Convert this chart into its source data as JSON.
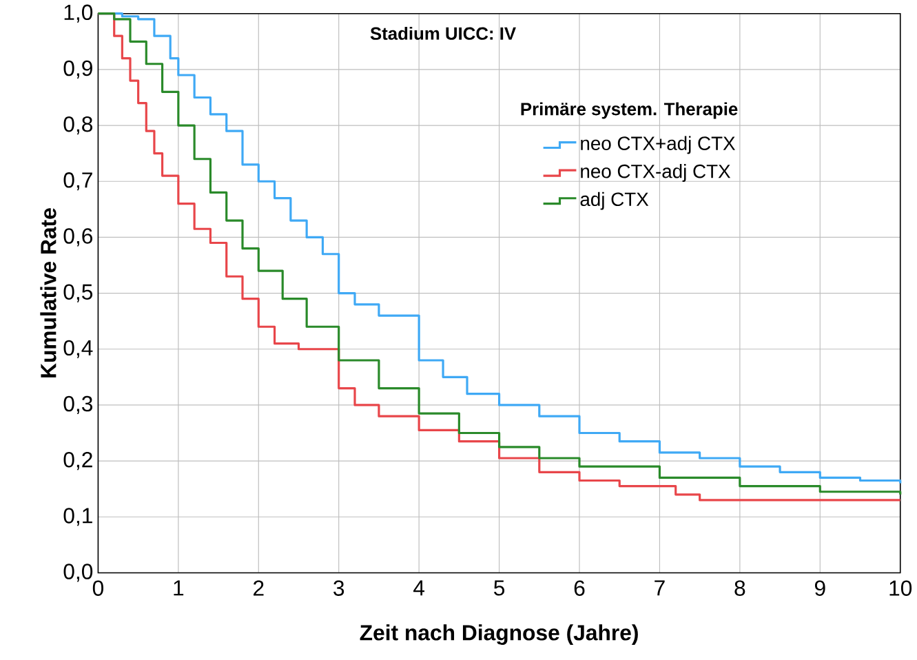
{
  "chart_data": {
    "type": "step",
    "title": "Stadium UICC: IV",
    "xlabel": "Zeit nach Diagnose (Jahre)",
    "ylabel": "Kumulative Rate",
    "legend_title": "Primäre system. Therapie",
    "xlim": [
      0,
      10
    ],
    "ylim": [
      0,
      1
    ],
    "xticks": [
      0,
      1,
      2,
      3,
      4,
      5,
      6,
      7,
      8,
      9,
      10
    ],
    "yticks": [
      {
        "value": 0,
        "label": "0,0"
      },
      {
        "value": 0.1,
        "label": "0,1"
      },
      {
        "value": 0.2,
        "label": "0,2"
      },
      {
        "value": 0.3,
        "label": "0,3"
      },
      {
        "value": 0.4,
        "label": "0,4"
      },
      {
        "value": 0.5,
        "label": "0,5"
      },
      {
        "value": 0.6,
        "label": "0,6"
      },
      {
        "value": 0.7,
        "label": "0,7"
      },
      {
        "value": 0.8,
        "label": "0,8"
      },
      {
        "value": 0.9,
        "label": "0,9"
      },
      {
        "value": 1,
        "label": "1,0"
      }
    ],
    "grid": true,
    "legend": "top right",
    "line_style": "solid",
    "series": [
      {
        "name": "neo CTX+adj CTX",
        "color": "#3fa9f5",
        "x": [
          0,
          0.3,
          0.5,
          0.7,
          0.9,
          1.0,
          1.2,
          1.4,
          1.6,
          1.8,
          2.0,
          2.2,
          2.4,
          2.6,
          2.8,
          3.0,
          3.2,
          3.5,
          4.0,
          4.3,
          4.6,
          5.0,
          5.5,
          6.0,
          6.5,
          7.0,
          7.5,
          8.0,
          8.5,
          9.0,
          9.5,
          10
        ],
        "values": [
          1.0,
          0.995,
          0.99,
          0.96,
          0.92,
          0.89,
          0.85,
          0.82,
          0.79,
          0.73,
          0.7,
          0.67,
          0.63,
          0.6,
          0.57,
          0.5,
          0.48,
          0.46,
          0.38,
          0.35,
          0.32,
          0.3,
          0.28,
          0.25,
          0.235,
          0.215,
          0.205,
          0.19,
          0.18,
          0.17,
          0.165,
          0.16
        ]
      },
      {
        "name": "neo CTX-adj CTX",
        "color": "#e8464a",
        "x": [
          0,
          0.2,
          0.3,
          0.4,
          0.5,
          0.6,
          0.7,
          0.8,
          1.0,
          1.2,
          1.4,
          1.6,
          1.8,
          2.0,
          2.2,
          2.5,
          3.0,
          3.2,
          3.5,
          4.0,
          4.5,
          5.0,
          5.5,
          6.0,
          6.5,
          7.0,
          7.2,
          7.5,
          10
        ],
        "values": [
          1.0,
          0.96,
          0.92,
          0.88,
          0.84,
          0.79,
          0.75,
          0.71,
          0.66,
          0.615,
          0.59,
          0.53,
          0.49,
          0.44,
          0.41,
          0.4,
          0.33,
          0.3,
          0.28,
          0.255,
          0.235,
          0.205,
          0.18,
          0.165,
          0.155,
          0.155,
          0.14,
          0.13,
          0.13
        ]
      },
      {
        "name": "adj CTX",
        "color": "#2a8a2a",
        "x": [
          0,
          0.2,
          0.4,
          0.6,
          0.8,
          1.0,
          1.2,
          1.4,
          1.6,
          1.8,
          2.0,
          2.3,
          2.6,
          3.0,
          3.5,
          4.0,
          4.5,
          5.0,
          5.5,
          6.0,
          7.0,
          8.0,
          9.0,
          10
        ],
        "values": [
          1.0,
          0.99,
          0.95,
          0.91,
          0.86,
          0.8,
          0.74,
          0.68,
          0.63,
          0.58,
          0.54,
          0.49,
          0.44,
          0.38,
          0.33,
          0.285,
          0.25,
          0.225,
          0.205,
          0.19,
          0.17,
          0.155,
          0.145,
          0.14
        ]
      }
    ]
  }
}
